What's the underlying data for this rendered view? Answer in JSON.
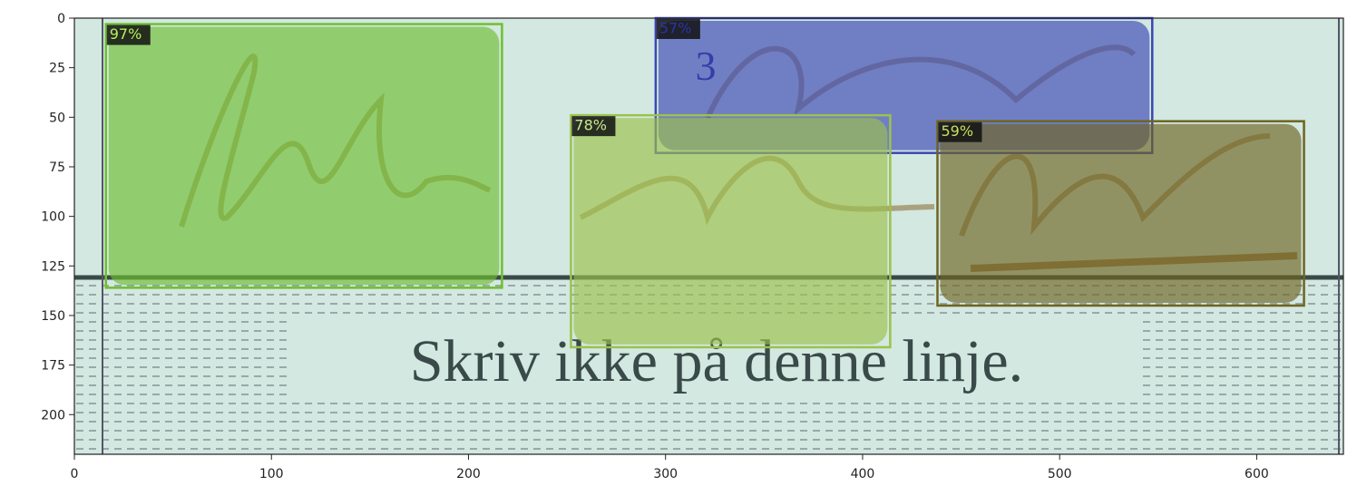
{
  "chart_data": {
    "type": "detection",
    "printed_text": "Skriv ikke på denne linje.",
    "form_number": "3",
    "xlim": [
      0,
      644
    ],
    "ylim": [
      220,
      0
    ],
    "xticks": [
      0,
      100,
      200,
      300,
      400,
      500,
      600
    ],
    "yticks": [
      0,
      25,
      50,
      75,
      100,
      125,
      150,
      175,
      200
    ],
    "values": [
      97,
      57,
      78,
      59
    ],
    "value_labels": [
      "97%",
      "57%",
      "78%",
      "59%"
    ],
    "boxes": [
      [
        16,
        3,
        217,
        136
      ],
      [
        295,
        0,
        547,
        68
      ],
      [
        252,
        49,
        414,
        166
      ],
      [
        438,
        52,
        624,
        145
      ]
    ],
    "colors": [
      "#6fbf2f",
      "#3c46b4",
      "#9cc24a",
      "#6e6420"
    ],
    "label_colors": [
      "#b8f05a",
      "#2a35a0",
      "#c8e890",
      "#c8e05a"
    ]
  }
}
